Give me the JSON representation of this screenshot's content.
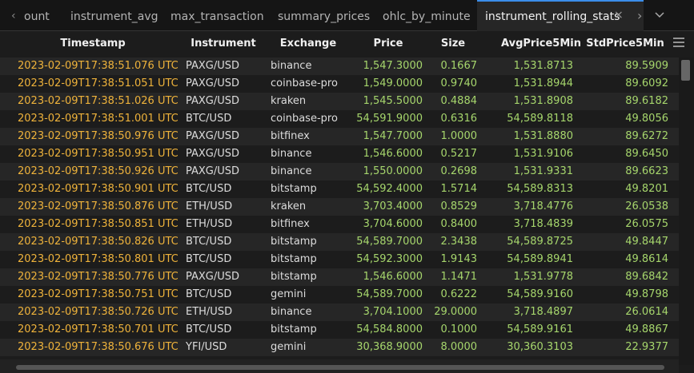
{
  "tabs": [
    "ount",
    "instrument_avg",
    "max_transaction",
    "summary_prices",
    "ohlc_by_minute",
    "instrument_rolling_stats"
  ],
  "table": {
    "headers": [
      "Timestamp",
      "Instrument",
      "Exchange",
      "Price",
      "Size",
      "AvgPrice5Min",
      "StdPrice5Min"
    ],
    "rows": [
      [
        "2023-02-09T17:38:51.076 UTC",
        "PAXG/USD",
        "binance",
        "1,547.3000",
        "0.1667",
        "1,531.8713",
        "89.5909"
      ],
      [
        "2023-02-09T17:38:51.051 UTC",
        "PAXG/USD",
        "coinbase-pro",
        "1,549.0000",
        "0.9740",
        "1,531.8944",
        "89.6092"
      ],
      [
        "2023-02-09T17:38:51.026 UTC",
        "PAXG/USD",
        "kraken",
        "1,545.5000",
        "0.4884",
        "1,531.8908",
        "89.6182"
      ],
      [
        "2023-02-09T17:38:51.001 UTC",
        "BTC/USD",
        "coinbase-pro",
        "54,591.9000",
        "0.6316",
        "54,589.8118",
        "49.8056"
      ],
      [
        "2023-02-09T17:38:50.976 UTC",
        "PAXG/USD",
        "bitfinex",
        "1,547.7000",
        "1.0000",
        "1,531.8880",
        "89.6272"
      ],
      [
        "2023-02-09T17:38:50.951 UTC",
        "PAXG/USD",
        "binance",
        "1,546.6000",
        "0.5217",
        "1,531.9106",
        "89.6450"
      ],
      [
        "2023-02-09T17:38:50.926 UTC",
        "PAXG/USD",
        "binance",
        "1,550.0000",
        "0.2698",
        "1,531.9331",
        "89.6623"
      ],
      [
        "2023-02-09T17:38:50.901 UTC",
        "BTC/USD",
        "bitstamp",
        "54,592.4000",
        "1.5714",
        "54,589.8313",
        "49.8201"
      ],
      [
        "2023-02-09T17:38:50.876 UTC",
        "ETH/USD",
        "kraken",
        "3,703.4000",
        "0.8529",
        "3,718.4776",
        "26.0538"
      ],
      [
        "2023-02-09T17:38:50.851 UTC",
        "ETH/USD",
        "bitfinex",
        "3,704.6000",
        "0.8400",
        "3,718.4839",
        "26.0575"
      ],
      [
        "2023-02-09T17:38:50.826 UTC",
        "BTC/USD",
        "bitstamp",
        "54,589.7000",
        "2.3438",
        "54,589.8725",
        "49.8447"
      ],
      [
        "2023-02-09T17:38:50.801 UTC",
        "BTC/USD",
        "bitstamp",
        "54,592.3000",
        "1.9143",
        "54,589.8941",
        "49.8614"
      ],
      [
        "2023-02-09T17:38:50.776 UTC",
        "PAXG/USD",
        "bitstamp",
        "1,546.6000",
        "1.1471",
        "1,531.9778",
        "89.6842"
      ],
      [
        "2023-02-09T17:38:50.751 UTC",
        "BTC/USD",
        "gemini",
        "54,589.7000",
        "0.6222",
        "54,589.9160",
        "49.8798"
      ],
      [
        "2023-02-09T17:38:50.726 UTC",
        "ETH/USD",
        "binance",
        "3,704.1000",
        "29.0000",
        "3,718.4897",
        "26.0614"
      ],
      [
        "2023-02-09T17:38:50.701 UTC",
        "BTC/USD",
        "bitstamp",
        "54,584.8000",
        "0.1000",
        "54,589.9161",
        "49.8867"
      ],
      [
        "2023-02-09T17:38:50.676 UTC",
        "YFI/USD",
        "gemini",
        "30,368.9000",
        "8.0000",
        "30,360.3103",
        "22.9377"
      ]
    ]
  }
}
